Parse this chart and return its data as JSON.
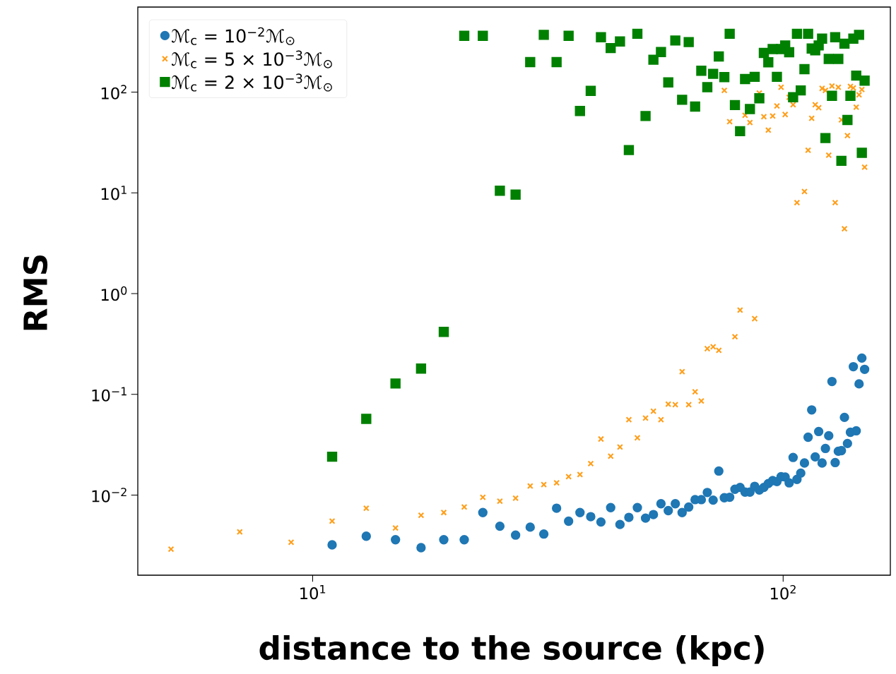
{
  "chart_data": {
    "type": "scatter",
    "xlabel": "distance to the source (kpc)",
    "ylabel": "RMS",
    "log": "xy",
    "xlim": [
      4.25,
      169
    ],
    "ylim": [
      0.0016,
      700
    ],
    "xticks": [
      {
        "value": 10,
        "label": "10$^{1}$"
      },
      {
        "value": 100,
        "label": "10$^{2}$"
      }
    ],
    "yticks": [
      {
        "value": 0.01,
        "label": "10$^{−2}$"
      },
      {
        "value": 0.1,
        "label": "10$^{−1}$"
      },
      {
        "value": 1,
        "label": "10$^{0}$"
      },
      {
        "value": 10,
        "label": "10$^{1}$"
      },
      {
        "value": 100,
        "label": "10$^{2}$"
      }
    ],
    "legend": "top left",
    "series": [
      {
        "name": "ℳ$_{c}$ = 10$^{−2}$ℳ$_{⊙}$",
        "color": "#1f77b4",
        "marker": "circle",
        "x": [
          11,
          13,
          15,
          17,
          19,
          21,
          23,
          25,
          27,
          29,
          31,
          33,
          35,
          37,
          39,
          41,
          43,
          45,
          47,
          49,
          51,
          53,
          55,
          57,
          59,
          61,
          63,
          65,
          67,
          69,
          71,
          73,
          75,
          77,
          79,
          81,
          83,
          85,
          87,
          89,
          91,
          93,
          95,
          97,
          99,
          101,
          103,
          105,
          107,
          109,
          111,
          113,
          115,
          117,
          119,
          121,
          123,
          125,
          127,
          129,
          131,
          133,
          135,
          137,
          139,
          141,
          143,
          145,
          147,
          149
        ],
        "values": [
          0.0032,
          0.0039,
          0.0036,
          0.003,
          0.0036,
          0.0036,
          0.0067,
          0.0049,
          0.004,
          0.0048,
          0.0041,
          0.0074,
          0.0055,
          0.0067,
          0.0061,
          0.0054,
          0.0075,
          0.0051,
          0.006,
          0.0075,
          0.0059,
          0.0064,
          0.0082,
          0.007,
          0.0082,
          0.0067,
          0.0076,
          0.009,
          0.009,
          0.0106,
          0.0089,
          0.0173,
          0.0094,
          0.0095,
          0.0114,
          0.0119,
          0.0107,
          0.0107,
          0.0122,
          0.0112,
          0.0119,
          0.013,
          0.0139,
          0.0136,
          0.0152,
          0.0151,
          0.0132,
          0.0236,
          0.0143,
          0.0165,
          0.0208,
          0.0375,
          0.07,
          0.0239,
          0.0427,
          0.0208,
          0.029,
          0.0388,
          0.134,
          0.021,
          0.0272,
          0.0276,
          0.059,
          0.0325,
          0.042,
          0.188,
          0.0434,
          0.127,
          0.229,
          0.177
        ]
      },
      {
        "name": "ℳ$_{c}$ = 5 × 10$^{−3}$ℳ$_{⊙}$",
        "color": "#ff9f1c",
        "marker": "cross",
        "x": [
          5,
          7,
          9,
          11,
          13,
          15,
          17,
          19,
          21,
          23,
          25,
          27,
          29,
          31,
          33,
          35,
          37,
          39,
          41,
          43,
          45,
          47,
          49,
          51,
          53,
          55,
          57,
          59,
          61,
          63,
          65,
          67,
          69,
          71,
          73,
          75,
          77,
          79,
          81,
          83,
          85,
          87,
          89,
          91,
          93,
          95,
          97,
          99,
          101,
          103,
          105,
          107,
          109,
          111,
          113,
          115,
          117,
          119,
          121,
          123,
          125,
          127,
          129,
          131,
          133,
          135,
          137,
          139,
          141,
          143,
          145,
          147,
          149
        ],
        "values": [
          0.0029,
          0.0043,
          0.0034,
          0.0055,
          0.0074,
          0.0047,
          0.0063,
          0.0067,
          0.0076,
          0.0095,
          0.0087,
          0.0093,
          0.0123,
          0.0127,
          0.0132,
          0.0152,
          0.016,
          0.0205,
          0.036,
          0.0243,
          0.03,
          0.056,
          0.037,
          0.058,
          0.068,
          0.056,
          0.08,
          0.079,
          0.168,
          0.079,
          0.106,
          0.086,
          0.284,
          0.296,
          0.273,
          104,
          51,
          0.373,
          0.685,
          59,
          50,
          0.564,
          98,
          57,
          42,
          58,
          73,
          112,
          60,
          89,
          75,
          8.0,
          null,
          10.3,
          26.5,
          55,
          75,
          70,
          109,
          104,
          23.7,
          115,
          8.0,
          112,
          53,
          4.4,
          37,
          114,
          110,
          71,
          94,
          106,
          18
        ]
      },
      {
        "name": "ℳ$_{c}$ = 2 × 10$^{−3}$ℳ$_{⊙}$",
        "color": "#008000",
        "marker": "square",
        "x": [
          11,
          13,
          15,
          17,
          19,
          21,
          23,
          25,
          27,
          29,
          31,
          33,
          35,
          37,
          39,
          41,
          43,
          45,
          47,
          49,
          51,
          53,
          55,
          57,
          59,
          61,
          63,
          65,
          67,
          69,
          71,
          73,
          75,
          77,
          79,
          81,
          83,
          85,
          87,
          89,
          91,
          93,
          95,
          97,
          99,
          101,
          103,
          105,
          107,
          109,
          111,
          113,
          115,
          117,
          119,
          121,
          123,
          125,
          127,
          129,
          131,
          133,
          135,
          137,
          139,
          141,
          143,
          145,
          147,
          149
        ],
        "values": [
          0.024,
          0.057,
          0.128,
          0.18,
          0.417,
          363,
          363,
          10.5,
          9.6,
          199,
          371,
          199,
          363,
          65,
          103,
          351,
          274,
          319,
          26.6,
          380,
          58,
          210,
          250,
          125,
          326,
          84,
          314,
          72,
          163,
          112,
          152,
          226,
          141,
          380,
          74.5,
          41,
          135,
          68,
          142,
          87,
          245,
          198,
          268,
          142,
          268,
          291,
          249,
          89,
          380,
          104,
          169,
          380,
          271,
          260,
          291,
          340,
          35,
          214,
          92,
          351,
          214,
          20.8,
          303,
          53,
          92,
          340,
          146,
          371,
          25,
          130
        ]
      }
    ]
  }
}
